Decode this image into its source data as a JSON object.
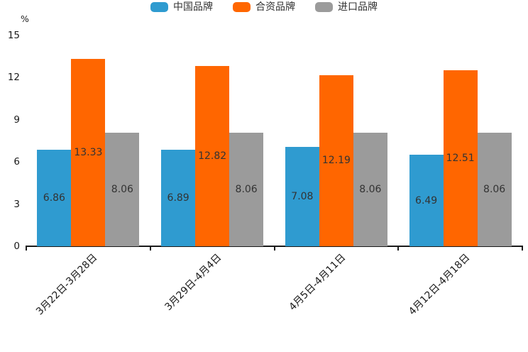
{
  "chart_data": {
    "type": "bar",
    "title": "",
    "ylabel": "%",
    "xlabel": "",
    "categories": [
      "3月22日-3月28日",
      "3月29日-4月4日",
      "4月5日-4月11日",
      "4月12日-4月18日"
    ],
    "series": [
      {
        "name": "中国品牌",
        "color": "#2f9bd0",
        "values": [
          6.86,
          6.89,
          7.08,
          6.49
        ]
      },
      {
        "name": "合资品牌",
        "color": "#ff6600",
        "values": [
          13.33,
          12.82,
          12.19,
          12.51
        ]
      },
      {
        "name": "进口品牌",
        "color": "#9b9b9b",
        "values": [
          8.06,
          8.06,
          8.06,
          8.06
        ]
      }
    ],
    "ylim": [
      0,
      15
    ],
    "yticks": [
      0,
      3,
      6,
      9,
      12,
      15
    ],
    "legend_position": "top-center",
    "grid": false,
    "value_label_position": "inside-center",
    "value_label_decimals": 2,
    "axis_color": "#1a1a1a",
    "tick_label_color": "#1a1a1a",
    "value_label_color": "#333333"
  }
}
